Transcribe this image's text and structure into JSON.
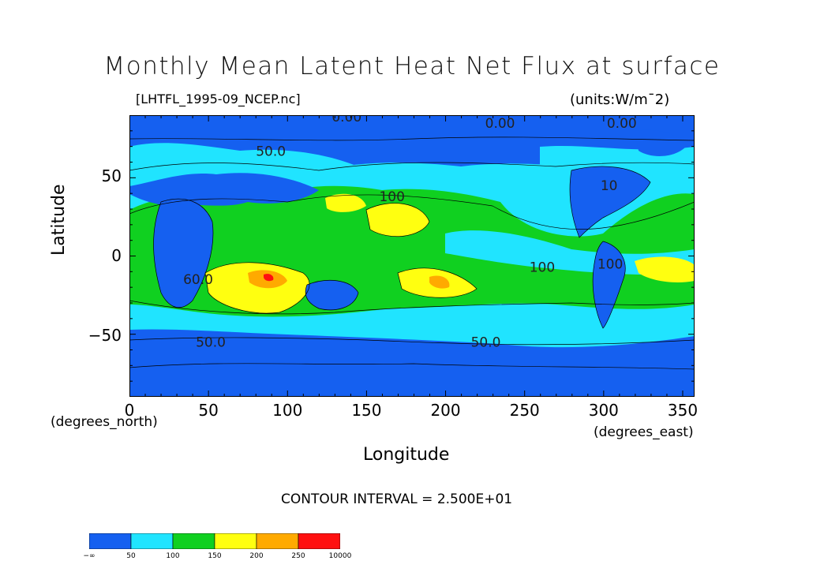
{
  "title": "Monthly Mean Latent Heat Net Flux at surface",
  "file_label": "[LHTFL_1995-09_NCEP.nc]",
  "units_label": "(units:W/m¯2)",
  "axes": {
    "ylabel": "Latitude",
    "xlabel": "Longitude",
    "x_unit_left": "(degrees_north)",
    "x_unit_right": "(degrees_east)",
    "yticks": [
      "50",
      "0",
      "−50"
    ],
    "xticks": [
      "0",
      "50",
      "100",
      "150",
      "200",
      "250",
      "300",
      "350"
    ],
    "xlim": [
      0,
      357.5
    ],
    "ylim": [
      -90,
      90
    ]
  },
  "contour_labels": [
    {
      "text": "0.00",
      "lon": 128,
      "lat": 86
    },
    {
      "text": "0.00",
      "lon": 225,
      "lat": 82
    },
    {
      "text": "0.00",
      "lon": 302,
      "lat": 82
    },
    {
      "text": "50.0",
      "lon": 80,
      "lat": 64
    },
    {
      "text": "100",
      "lon": 158,
      "lat": 35
    },
    {
      "text": "100",
      "lon": 253,
      "lat": -10
    },
    {
      "text": "100",
      "lon": 296,
      "lat": -8
    },
    {
      "text": "50.0",
      "lon": 42,
      "lat": -58
    },
    {
      "text": "50.0",
      "lon": 216,
      "lat": -58
    },
    {
      "text": "10",
      "lon": 298,
      "lat": 42
    },
    {
      "text": "60.0",
      "lon": 34,
      "lat": -18
    }
  ],
  "contour_interval": "CONTOUR INTERVAL = 2.500E+01",
  "colorbar": {
    "colors": [
      "#1560f0",
      "#20e4ff",
      "#10d020",
      "#ffff10",
      "#ffaa00",
      "#ff1010"
    ],
    "labels": [
      "−∞",
      "50",
      "100",
      "150",
      "200",
      "250",
      "10000"
    ]
  }
}
